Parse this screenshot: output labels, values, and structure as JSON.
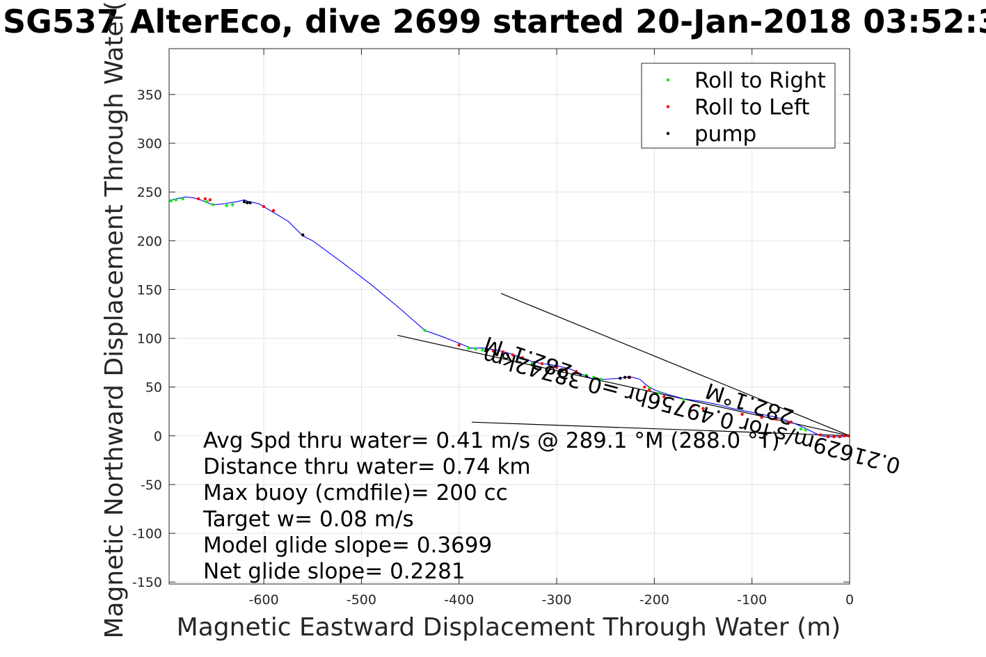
{
  "chart_data": {
    "type": "line",
    "title": "SG537 AlterEco, dive 2699 started 20-Jan-2018 03:52:3",
    "xlabel": "Magnetic Eastward Displacement Through Water (m)",
    "ylabel": "Magnetic Northward Displacement Through Water(",
    "xlim": [
      -697,
      0
    ],
    "ylim": [
      -152,
      397
    ],
    "xticks": [
      -600,
      -500,
      -400,
      -300,
      -200,
      -100,
      0
    ],
    "xtick_labels": [
      "-600",
      "-500",
      "-400",
      "-300",
      "-200",
      "-100",
      "0"
    ],
    "yticks": [
      -150,
      -100,
      -50,
      0,
      50,
      100,
      150,
      200,
      250,
      300,
      350
    ],
    "ytick_labels": [
      "-150",
      "-100",
      "-50",
      "0",
      "50",
      "100",
      "150",
      "200",
      "250",
      "300",
      "350"
    ],
    "grid": true,
    "legend_position": "top-right",
    "legend": [
      {
        "label": "Roll to Right",
        "color": "#00ee00"
      },
      {
        "label": "Roll to Left",
        "color": "#ff0000"
      },
      {
        "label": "pump",
        "color": "#000000"
      }
    ],
    "track": {
      "color": "#0000ff",
      "x": [
        0,
        -6,
        -14,
        -22,
        -30,
        -40,
        -46,
        -55,
        -65,
        -75,
        -90,
        -105,
        -120,
        -135,
        -150,
        -170,
        -185,
        -200,
        -208,
        -215,
        -222,
        -228,
        -235,
        -250,
        -262,
        -272,
        -285,
        -300,
        -315,
        -325,
        -338,
        -350,
        -362,
        -375,
        -388,
        -400,
        -418,
        -435,
        -460,
        -490,
        -520,
        -550,
        -560,
        -575,
        -595,
        -605,
        -615,
        -620,
        -628,
        -640,
        -650,
        -655,
        -665,
        -672,
        -680,
        -690,
        -697
      ],
      "y": [
        0,
        -1,
        -1,
        -1,
        0,
        5,
        8,
        12,
        16,
        19,
        22,
        25,
        28,
        32,
        35,
        38,
        42,
        47,
        52,
        58,
        60,
        60,
        59,
        58,
        58,
        62,
        68,
        72,
        74,
        76,
        81,
        85,
        88,
        90,
        90,
        95,
        102,
        108,
        130,
        155,
        178,
        200,
        205,
        220,
        232,
        238,
        240,
        242,
        240,
        238,
        237,
        238,
        242,
        244,
        245,
        243,
        241
      ]
    },
    "reference_lines": [
      {
        "x": [
          -357,
          0
        ],
        "y": [
          146,
          0
        ],
        "color": "#000000"
      },
      {
        "x": [
          -387,
          0
        ],
        "y": [
          14,
          0
        ],
        "color": "#000000"
      },
      {
        "x": [
          -463,
          0
        ],
        "y": [
          103,
          0
        ],
        "color": "#000000"
      }
    ],
    "series": [
      {
        "name": "Roll to Right",
        "color": "#00ee00",
        "x": [
          -695,
          -690,
          -683,
          -658,
          -652,
          -638,
          -632,
          -435,
          -390,
          -383,
          -376,
          -340,
          -325,
          -270,
          -262,
          -255,
          -205,
          -195,
          -170,
          -50,
          -45
        ],
        "y": [
          241,
          242,
          243,
          240,
          237,
          236,
          237,
          108,
          90,
          89,
          88,
          80,
          74,
          62,
          60,
          58,
          49,
          44,
          37,
          7,
          6
        ]
      },
      {
        "name": "Roll to Left",
        "color": "#ff0000",
        "x": [
          -667,
          -660,
          -655,
          -600,
          -590,
          -400,
          -365,
          -355,
          -345,
          -335,
          -315,
          -300,
          -290,
          -280,
          -225,
          -210,
          -205,
          -190,
          -160,
          -150,
          -110,
          -90,
          -75,
          -60,
          -30,
          -22,
          -16,
          -10,
          -5,
          -1
        ],
        "y": [
          243,
          243,
          242,
          235,
          231,
          93,
          87,
          86,
          83,
          80,
          74,
          70,
          68,
          66,
          60,
          50,
          47,
          40,
          31,
          28,
          22,
          19,
          17,
          14,
          1,
          -1,
          -1,
          -1,
          0,
          0
        ]
      },
      {
        "name": "pump",
        "color": "#000000",
        "x": [
          -620,
          -617,
          -614,
          -560,
          -235,
          -230,
          -226
        ],
        "y": [
          240,
          239,
          239,
          206,
          59,
          60,
          60
        ]
      }
    ],
    "annotations": [
      {
        "text": "282.1°M",
        "x": -327,
        "y": 87,
        "rotation": 199
      },
      {
        "text": "0.21629m/s for 0.49756hr =0.38742km",
        "x": -160,
        "y": 33,
        "rotation": 195
      },
      {
        "text": "282.1°M",
        "x": -100,
        "y": 40,
        "rotation": 198
      }
    ],
    "stats": [
      "Avg Spd thru water=  0.41 m/s @ 289.1 °M (288.0 °T)",
      "Distance thru water=  0.74 km",
      "Max buoy (cmdfile)= 200 cc",
      "Target w= 0.08 m/s",
      "Model glide slope= 0.3699",
      "Net glide slope= 0.2281"
    ]
  }
}
